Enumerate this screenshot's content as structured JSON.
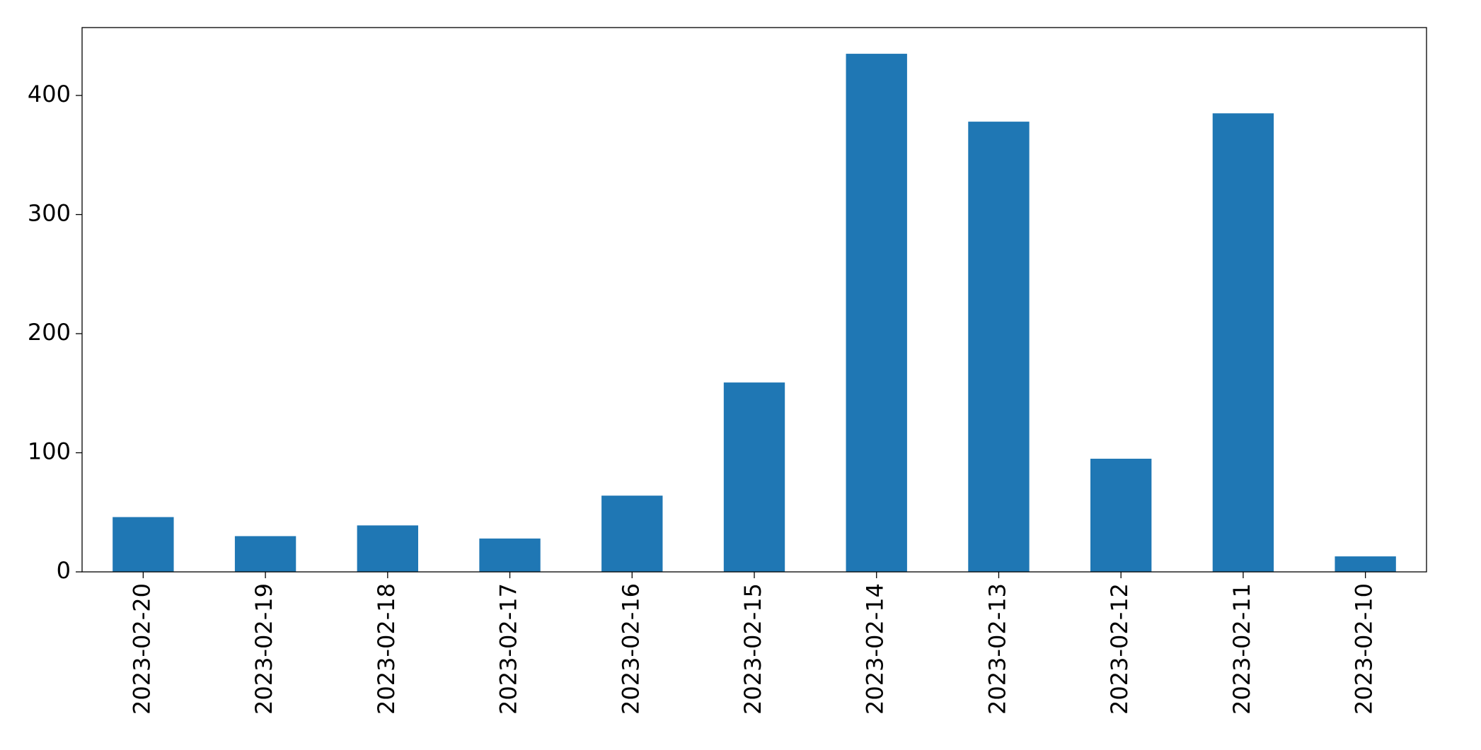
{
  "chart_data": {
    "type": "bar",
    "categories": [
      "2023-02-20",
      "2023-02-19",
      "2023-02-18",
      "2023-02-17",
      "2023-02-16",
      "2023-02-15",
      "2023-02-14",
      "2023-02-13",
      "2023-02-12",
      "2023-02-11",
      "2023-02-10"
    ],
    "values": [
      46,
      30,
      39,
      28,
      64,
      159,
      435,
      378,
      95,
      385,
      13
    ],
    "color": "#1f77b4",
    "ylim": [
      0,
      457
    ],
    "yticks": [
      0,
      100,
      200,
      300,
      400
    ],
    "grid": false
  }
}
